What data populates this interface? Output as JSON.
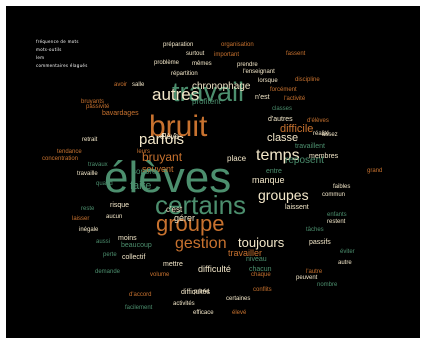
{
  "colors": {
    "background": "#000000",
    "green": "#4c8f6e",
    "orange": "#c8722f",
    "cream": "#f3e7c9",
    "page": "#ffffff"
  },
  "caption": [
    "fréquence de mots",
    "mots-outils",
    "lem",
    "commentaires élagués"
  ],
  "words": [
    {
      "text": "élèves",
      "size": 44,
      "color": "green"
    },
    {
      "text": "bruit",
      "size": 30,
      "color": "orange"
    },
    {
      "text": "travail",
      "size": 27,
      "color": "green"
    },
    {
      "text": "certains",
      "size": 26,
      "color": "green"
    },
    {
      "text": "groupe",
      "size": 22,
      "color": "orange"
    },
    {
      "text": "autres",
      "size": 17,
      "color": "cream"
    },
    {
      "text": "gestion",
      "size": 16,
      "color": "orange"
    },
    {
      "text": "temps",
      "size": 16,
      "color": "cream"
    },
    {
      "text": "parfois",
      "size": 15,
      "color": "cream"
    },
    {
      "text": "groupes",
      "size": 14,
      "color": "cream"
    },
    {
      "text": "toujours",
      "size": 13,
      "color": "cream"
    },
    {
      "text": "bruyant",
      "size": 12,
      "color": "orange"
    },
    {
      "text": "classe",
      "size": 11,
      "color": "cream"
    },
    {
      "text": "difficile",
      "size": 11,
      "color": "orange"
    },
    {
      "text": "faire",
      "size": 11,
      "color": "green"
    },
    {
      "text": "chronophage",
      "size": 10,
      "color": "cream"
    },
    {
      "text": "reposent",
      "size": 10,
      "color": "green"
    },
    {
      "text": "souvent",
      "size": 9,
      "color": "orange"
    },
    {
      "text": "travailler",
      "size": 9,
      "color": "orange"
    },
    {
      "text": "manque",
      "size": 9,
      "color": "cream"
    },
    {
      "text": "gérer",
      "size": 9,
      "color": "cream"
    },
    {
      "text": "difficulté",
      "size": 9,
      "color": "cream"
    },
    {
      "text": "profitent",
      "size": 8,
      "color": "green"
    },
    {
      "text": "élève",
      "size": 8,
      "color": "cream"
    },
    {
      "text": "place",
      "size": 8,
      "color": "cream"
    },
    {
      "text": "sonore",
      "size": 8,
      "color": "green"
    },
    {
      "text": "c'est",
      "size": 8,
      "color": "cream"
    },
    {
      "text": "n'est",
      "size": 7,
      "color": "cream"
    },
    {
      "text": "d'autres",
      "size": 7,
      "color": "cream"
    },
    {
      "text": "travaillent",
      "size": 7,
      "color": "green"
    },
    {
      "text": "entre",
      "size": 7,
      "color": "green"
    },
    {
      "text": "laissent",
      "size": 7,
      "color": "cream"
    },
    {
      "text": "niveau",
      "size": 7,
      "color": "green"
    },
    {
      "text": "chacun",
      "size": 7,
      "color": "green"
    },
    {
      "text": "mettre",
      "size": 7,
      "color": "cream"
    },
    {
      "text": "collectif",
      "size": 7,
      "color": "cream"
    },
    {
      "text": "beaucoup",
      "size": 7,
      "color": "green"
    },
    {
      "text": "membres",
      "size": 7,
      "color": "cream"
    },
    {
      "text": "risque",
      "size": 7,
      "color": "cream"
    },
    {
      "text": "passifs",
      "size": 7,
      "color": "cream"
    },
    {
      "text": "difficultés",
      "size": 7,
      "color": "cream"
    },
    {
      "text": "moins",
      "size": 7,
      "color": "cream"
    },
    {
      "text": "bavardages",
      "size": 7,
      "color": "orange"
    },
    {
      "text": "préparation",
      "size": 6,
      "color": "cream"
    },
    {
      "text": "organisation",
      "size": 6,
      "color": "orange"
    },
    {
      "text": "surtout",
      "size": 6,
      "color": "cream"
    },
    {
      "text": "important",
      "size": 6,
      "color": "orange"
    },
    {
      "text": "fassent",
      "size": 6,
      "color": "orange"
    },
    {
      "text": "mêmes",
      "size": 6,
      "color": "cream"
    },
    {
      "text": "problème",
      "size": 6,
      "color": "cream"
    },
    {
      "text": "prendre",
      "size": 6,
      "color": "cream"
    },
    {
      "text": "l'enseignant",
      "size": 6,
      "color": "cream"
    },
    {
      "text": "répartition",
      "size": 6,
      "color": "cream"
    },
    {
      "text": "lorsque",
      "size": 6,
      "color": "cream"
    },
    {
      "text": "l'activité",
      "size": 6,
      "color": "orange"
    },
    {
      "text": "discipline",
      "size": 6,
      "color": "orange"
    },
    {
      "text": "bruyants",
      "size": 6,
      "color": "orange"
    },
    {
      "text": "avoir",
      "size": 6,
      "color": "orange"
    },
    {
      "text": "salle",
      "size": 6,
      "color": "cream"
    },
    {
      "text": "forcément",
      "size": 6,
      "color": "orange"
    },
    {
      "text": "d'élèves",
      "size": 6,
      "color": "orange"
    },
    {
      "text": "passivité",
      "size": 6,
      "color": "orange"
    },
    {
      "text": "classes",
      "size": 6,
      "color": "green"
    },
    {
      "text": "réalité",
      "size": 6,
      "color": "cream"
    },
    {
      "text": "retrait",
      "size": 6,
      "color": "cream"
    },
    {
      "text": "assez",
      "size": 6,
      "color": "cream"
    },
    {
      "text": "tendance",
      "size": 6,
      "color": "orange"
    },
    {
      "text": "concentration",
      "size": 6,
      "color": "orange"
    },
    {
      "text": "travaux",
      "size": 6,
      "color": "green"
    },
    {
      "text": "leurs",
      "size": 6,
      "color": "orange"
    },
    {
      "text": "travaille",
      "size": 6,
      "color": "cream"
    },
    {
      "text": "grand",
      "size": 6,
      "color": "orange"
    },
    {
      "text": "quand",
      "size": 6,
      "color": "green"
    },
    {
      "text": "faibles",
      "size": 6,
      "color": "cream"
    },
    {
      "text": "commun",
      "size": 6,
      "color": "cream"
    },
    {
      "text": "reste",
      "size": 6,
      "color": "green"
    },
    {
      "text": "enfants",
      "size": 6,
      "color": "green"
    },
    {
      "text": "aucun",
      "size": 6,
      "color": "cream"
    },
    {
      "text": "restent",
      "size": 6,
      "color": "cream"
    },
    {
      "text": "laisser",
      "size": 6,
      "color": "orange"
    },
    {
      "text": "tâches",
      "size": 6,
      "color": "green"
    },
    {
      "text": "inégale",
      "size": 6,
      "color": "cream"
    },
    {
      "text": "aussi",
      "size": 6,
      "color": "green"
    },
    {
      "text": "éviter",
      "size": 6,
      "color": "green"
    },
    {
      "text": "perte",
      "size": 6,
      "color": "green"
    },
    {
      "text": "peuvent",
      "size": 6,
      "color": "cream"
    },
    {
      "text": "autre",
      "size": 6,
      "color": "cream"
    },
    {
      "text": "demande",
      "size": 6,
      "color": "green"
    },
    {
      "text": "volume",
      "size": 6,
      "color": "orange"
    },
    {
      "text": "chaque",
      "size": 6,
      "color": "orange"
    },
    {
      "text": "l'autre",
      "size": 6,
      "color": "orange"
    },
    {
      "text": "nombre",
      "size": 6,
      "color": "green"
    },
    {
      "text": "prend",
      "size": 6,
      "color": "cream"
    },
    {
      "text": "conflits",
      "size": 6,
      "color": "orange"
    },
    {
      "text": "d'accord",
      "size": 6,
      "color": "orange"
    },
    {
      "text": "activités",
      "size": 6,
      "color": "cream"
    },
    {
      "text": "certaines",
      "size": 6,
      "color": "cream"
    },
    {
      "text": "facilement",
      "size": 6,
      "color": "green"
    },
    {
      "text": "efficace",
      "size": 6,
      "color": "cream"
    },
    {
      "text": "élevé",
      "size": 6,
      "color": "orange"
    }
  ]
}
